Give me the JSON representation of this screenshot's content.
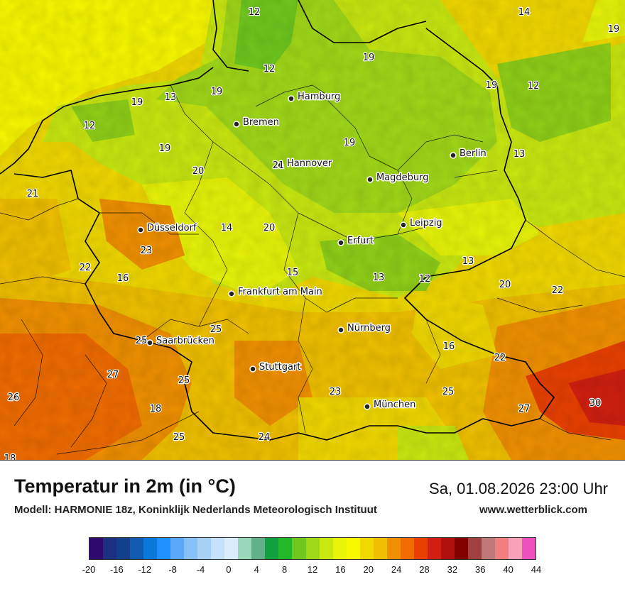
{
  "title": "Temperatur in 2m (in °C)",
  "model": "Modell: HARMONIE 18z, Koninklijk Nederlands Meteorologisch Instituut",
  "datetime": "Sa, 01.08.2026 23:00 Uhr",
  "website": "www.wetterblick.com",
  "cities": [
    {
      "name": "Hamburg"
    },
    {
      "name": "Bremen"
    },
    {
      "name": "Hannover"
    },
    {
      "name": "Berlin"
    },
    {
      "name": "Magdeburg"
    },
    {
      "name": "Leipzig"
    },
    {
      "name": "Düsseldorf"
    },
    {
      "name": "Erfurt"
    },
    {
      "name": "Frankfurt am Main"
    },
    {
      "name": "Nürnberg"
    },
    {
      "name": "Saarbrücken"
    },
    {
      "name": "Stuttgart"
    },
    {
      "name": "München"
    }
  ],
  "temperature_labels": [
    "12",
    "14",
    "19",
    "19",
    "12",
    "13",
    "19",
    "19",
    "12",
    "12",
    "19",
    "19",
    "21",
    "19",
    "13",
    "20",
    "21",
    "23",
    "22",
    "14",
    "20",
    "15",
    "13",
    "12",
    "13",
    "16",
    "20",
    "22",
    "25",
    "25",
    "27",
    "25",
    "16",
    "22",
    "26",
    "18",
    "25",
    "24",
    "23",
    "25",
    "27",
    "30",
    "18"
  ],
  "legend": {
    "colors": [
      "#2e0a6e",
      "#1c2f80",
      "#143f8a",
      "#0e5bb0",
      "#0a78d8",
      "#1e90ff",
      "#5aa8f5",
      "#87c2f7",
      "#a7d0f5",
      "#c4e0fa",
      "#d8ecfc",
      "#98d8b8",
      "#60b088",
      "#10a040",
      "#20b828",
      "#70c81e",
      "#a0d818",
      "#c8e810",
      "#e8f408",
      "#f8f800",
      "#f0d800",
      "#f0c000",
      "#f09000",
      "#f06c00",
      "#e84000",
      "#d02010",
      "#b01010",
      "#800000",
      "#a04040",
      "#c07878",
      "#f08080",
      "#f8a0b8",
      "#f050c0"
    ],
    "ticks": [
      "-20",
      "-16",
      "-12",
      "-8",
      "-4",
      "0",
      "4",
      "8",
      "12",
      "16",
      "20",
      "24",
      "28",
      "32",
      "36",
      "40",
      "44"
    ]
  }
}
